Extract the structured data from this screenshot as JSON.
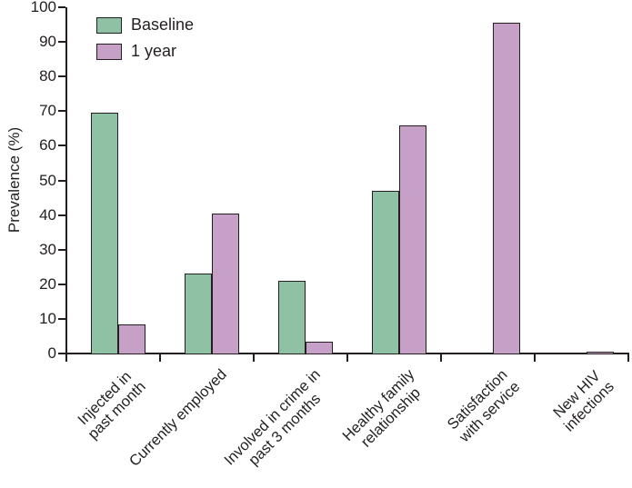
{
  "chart_data": {
    "type": "bar",
    "title": "",
    "xlabel": "",
    "ylabel": "Prevalence (%)",
    "ylim": [
      0,
      100
    ],
    "yticks": [
      0,
      10,
      20,
      30,
      40,
      50,
      60,
      70,
      80,
      90,
      100
    ],
    "grid": false,
    "legend_position": "upper-left-inside",
    "categories": [
      "Injected in past month",
      "Currently employed",
      "Involved in crime in past 3 months",
      "Healthy family relationship",
      "Satisfaction with service",
      "New HIV infections"
    ],
    "category_label_lines": [
      [
        "Injected in",
        "past month"
      ],
      [
        "Currently employed"
      ],
      [
        "Involved in crime in",
        "past 3 months"
      ],
      [
        "Healthy family",
        "relationship"
      ],
      [
        "Satisfaction",
        "with service"
      ],
      [
        "New HIV",
        "infections"
      ]
    ],
    "series": [
      {
        "name": "Baseline",
        "color": "#8fc2a4",
        "values": [
          69.5,
          23,
          21,
          47,
          null,
          null
        ]
      },
      {
        "name": "1 year",
        "color": "#c6a0c6",
        "values": [
          8.5,
          40.5,
          3.5,
          66,
          95.5,
          0.4
        ]
      }
    ],
    "bar_border_color": "#231f20",
    "axis_color": "#231f20"
  }
}
